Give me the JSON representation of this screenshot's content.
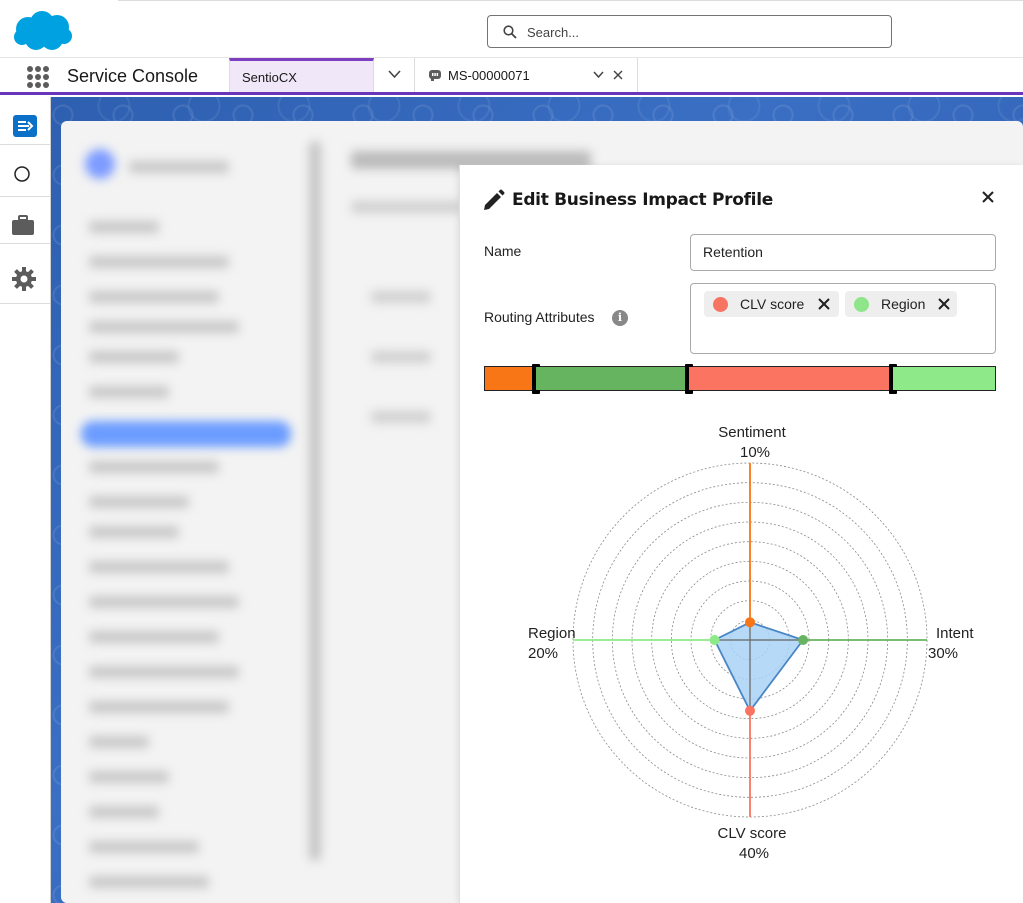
{
  "header": {
    "search_placeholder": "Search..."
  },
  "nav": {
    "app_name": "Service Console",
    "tabs": [
      {
        "label": "SentioCX"
      },
      {
        "label": "MS-00000071"
      }
    ]
  },
  "rail": {
    "items": [
      {
        "icon": "split-view-icon"
      },
      {
        "icon": "circle-icon"
      },
      {
        "icon": "briefcase-icon"
      },
      {
        "icon": "gear-icon"
      }
    ]
  },
  "panel": {
    "title": "Edit Business Impact Profile",
    "name_label": "Name",
    "name_value": "Retention",
    "routing_label": "Routing Attributes",
    "chips": [
      {
        "label": "CLV score",
        "color": "#f87462"
      },
      {
        "label": "Region",
        "color": "#8ee58a"
      }
    ],
    "weight_segments": [
      {
        "name": "Sentiment",
        "percent": 10,
        "color": "#f97616"
      },
      {
        "name": "Intent",
        "percent": 30,
        "color": "#66b45f"
      },
      {
        "name": "CLV score",
        "percent": 40,
        "color": "#fb7462"
      },
      {
        "name": "Region",
        "percent": 20,
        "color": "#8eea88"
      }
    ]
  },
  "chart_data": {
    "type": "radar",
    "axes": [
      {
        "name": "Sentiment",
        "value_label": "10%",
        "value": 10,
        "color": "#f97616"
      },
      {
        "name": "Intent",
        "value_label": "30%",
        "value": 30,
        "color": "#66b45f"
      },
      {
        "name": "CLV score",
        "value_label": "40%",
        "value": 40,
        "color": "#fb7462"
      },
      {
        "name": "Region",
        "value_label": "20%",
        "value": 20,
        "color": "#8eea88"
      }
    ],
    "rmax": 100,
    "ring_count": 9,
    "fill_color": "#a9d2f7",
    "stroke_color": "#4a86c5"
  }
}
